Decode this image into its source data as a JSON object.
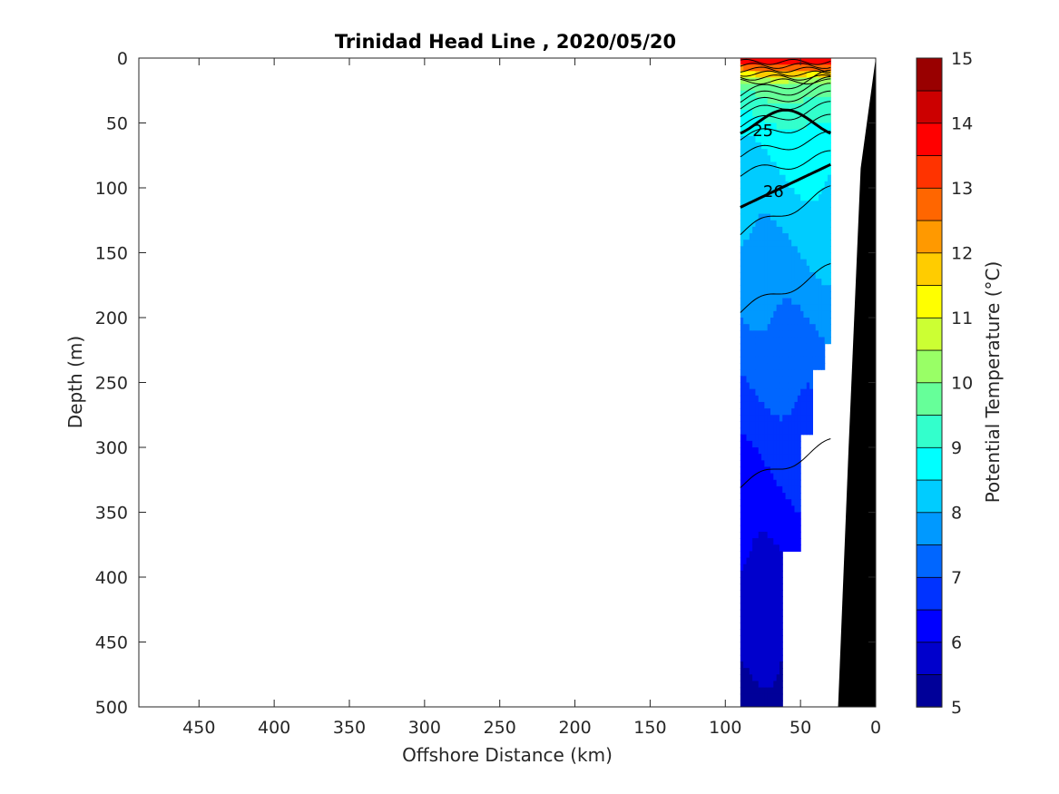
{
  "chart_data": {
    "type": "contour",
    "title": "Trinidad Head Line , 2020/05/20",
    "xlabel": "Offshore Distance (km)",
    "ylabel": "Depth (m)",
    "xlim": [
      490,
      0
    ],
    "ylim": [
      0,
      500
    ],
    "x_reversed": true,
    "y_reversed": true,
    "xticks": [
      450,
      400,
      350,
      300,
      250,
      200,
      150,
      100,
      50,
      0
    ],
    "yticks": [
      0,
      50,
      100,
      150,
      200,
      250,
      300,
      350,
      400,
      450,
      500
    ],
    "colorbar": {
      "label": "Potential Temperature (°C)",
      "range": [
        5,
        15
      ],
      "ticks": [
        5,
        6,
        7,
        8,
        9,
        10,
        11,
        12,
        13,
        14,
        15
      ],
      "step": 0.5,
      "colors": [
        "#00007f",
        "#0000a6",
        "#0000d0",
        "#0000f9",
        "#0016ff",
        "#003fff",
        "#006aff",
        "#0093ff",
        "#00bdff",
        "#00e6ff",
        "#1aff e4",
        "#43ffbb",
        "#6dff91",
        "#96ff67",
        "#c0ff3d",
        "#e9ff14",
        "#ffec00",
        "#ffc300",
        "#ff9a00",
        "#ff7000"
      ]
    },
    "temperature_bands": [
      {
        "t_min": 5.0,
        "t_max": 5.5,
        "depth_range": [
          430,
          500
        ]
      },
      {
        "t_min": 5.5,
        "t_max": 6.0,
        "depth_range": [
          400,
          440
        ]
      },
      {
        "t_min": 6.0,
        "t_max": 6.5,
        "depth_range": [
          300,
          410
        ]
      },
      {
        "t_min": 6.5,
        "t_max": 7.0,
        "depth_range": [
          250,
          300
        ]
      },
      {
        "t_min": 7.0,
        "t_max": 7.5,
        "depth_range": [
          195,
          260
        ]
      },
      {
        "t_min": 7.5,
        "t_max": 8.0,
        "depth_range": [
          140,
          200
        ]
      },
      {
        "t_min": 8.0,
        "t_max": 8.5,
        "depth_range": [
          95,
          145
        ]
      },
      {
        "t_min": 8.5,
        "t_max": 9.0,
        "depth_range": [
          70,
          110
        ]
      },
      {
        "t_min": 9.0,
        "t_max": 9.5,
        "depth_range": [
          40,
          80
        ]
      },
      {
        "t_min": 9.5,
        "t_max": 10.0,
        "depth_range": [
          30,
          55
        ]
      },
      {
        "t_min": 10.0,
        "t_max": 14.5,
        "depth_range": [
          0,
          30
        ]
      }
    ],
    "density_contours": [
      {
        "label": "25",
        "approx_depth": 50
      },
      {
        "label": "26",
        "approx_depth": 100
      }
    ],
    "data_extent_km": [
      90,
      30
    ],
    "bathymetry": "black wedge from surface at 0 km to ~25 km at 500 m depth"
  }
}
